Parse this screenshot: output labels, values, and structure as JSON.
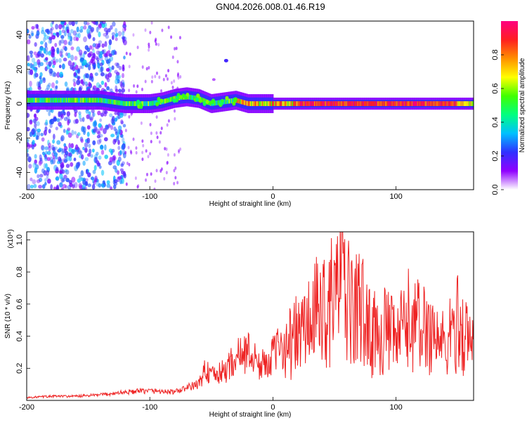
{
  "title": "GN04.2026.008.01.46.R19",
  "colors": {
    "snr_line": "#ee2222",
    "spectrogram_low": "#9b5cff",
    "spectrogram_high": "#e00020"
  },
  "chart_data": [
    {
      "type": "heatmap",
      "name": "spectrogram",
      "title": "GN04.2026.008.01.46.R19",
      "xlabel": "Height of straight line (km)",
      "ylabel": "Frequency (Hz)",
      "xlim": [
        -200,
        163
      ],
      "ylim": [
        -50,
        48
      ],
      "x_ticks": [
        -200,
        -100,
        0,
        100
      ],
      "y_ticks": [
        -40,
        -20,
        0,
        20,
        40
      ],
      "colorbar": {
        "label": "Normalized spectral amplitude",
        "range": [
          0,
          1
        ],
        "ticks": [
          "0.0",
          "0.2",
          "0.4",
          "0.6",
          "0.8"
        ],
        "colors": [
          "#ffffff",
          "#9000ff",
          "#3030ff",
          "#00c0ff",
          "#00ff80",
          "#40ff00",
          "#ffff00",
          "#ff9000",
          "#ff2020",
          "#ff0080"
        ]
      },
      "band_center": {
        "x": [
          -200,
          -170,
          -140,
          -120,
          -100,
          -90,
          -80,
          -70,
          -60,
          -50,
          -40,
          -30,
          -20,
          0,
          50,
          100,
          163
        ],
        "y": [
          2,
          2,
          2,
          0,
          0,
          1,
          3,
          4,
          3,
          0,
          1,
          2,
          0,
          0,
          0,
          0,
          0
        ]
      }
    },
    {
      "type": "line",
      "name": "snr",
      "xlabel": "Height of straight line (km)",
      "ylabel": "SNR (10 * v/v)",
      "y_scale_label": "(x10⁴)",
      "xlim": [
        -200,
        163
      ],
      "ylim": [
        0,
        1.05
      ],
      "x_ticks": [
        -200,
        -100,
        0,
        100
      ],
      "y_ticks": [
        "0.2",
        "0.4",
        "0.6",
        "0.8",
        "1.0"
      ],
      "series": [
        {
          "x": [
            -200,
            -180,
            -160,
            -140,
            -120,
            -100,
            -80,
            -70,
            -60,
            -55,
            -50,
            -40,
            -30,
            -20,
            -10,
            0,
            10,
            20,
            30,
            40,
            45,
            50,
            55,
            60,
            65,
            70,
            80,
            90,
            100,
            110,
            120,
            130,
            140,
            150,
            155,
            163
          ],
          "values": [
            0.02,
            0.03,
            0.03,
            0.04,
            0.06,
            0.07,
            0.06,
            0.09,
            0.12,
            0.25,
            0.18,
            0.22,
            0.33,
            0.38,
            0.26,
            0.35,
            0.45,
            0.55,
            0.65,
            0.8,
            0.75,
            0.92,
            1.04,
            0.86,
            0.72,
            0.82,
            0.55,
            0.6,
            0.5,
            0.68,
            0.62,
            0.58,
            0.45,
            0.66,
            0.55,
            0.48
          ]
        }
      ]
    }
  ]
}
